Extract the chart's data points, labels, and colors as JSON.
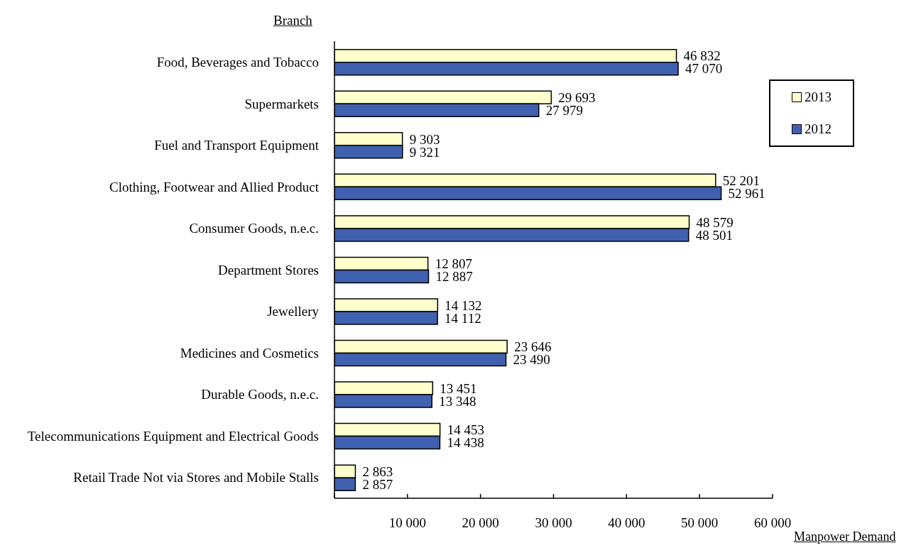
{
  "chart_data": {
    "type": "bar",
    "orientation": "horizontal",
    "ylabel": "Branch",
    "xlabel": "Manpower Demand",
    "categories": [
      "Food, Beverages and Tobacco",
      "Supermarkets",
      "Fuel and Transport Equipment",
      "Clothing, Footwear and Allied Product",
      "Consumer Goods, n.e.c.",
      "Department Stores",
      "Jewellery",
      "Medicines and Cosmetics",
      "Durable Goods, n.e.c.",
      "Telecommunications Equipment and Electrical Goods",
      "Retail Trade Not via Stores and Mobile Stalls"
    ],
    "series": [
      {
        "name": "2013",
        "color": "#ffffcc",
        "values": [
          46832,
          29693,
          9303,
          52201,
          48579,
          12807,
          14132,
          23646,
          13451,
          14453,
          2863
        ],
        "value_labels": [
          "46 832",
          "29 693",
          "9 303",
          "52 201",
          "48 579",
          "12 807",
          "14 132",
          "23 646",
          "13 451",
          "14 453",
          "2 863"
        ]
      },
      {
        "name": "2012",
        "color": "#4060b0",
        "values": [
          47070,
          27979,
          9321,
          52961,
          48501,
          12887,
          14112,
          23490,
          13348,
          14438,
          2857
        ],
        "value_labels": [
          "47 070",
          "27 979",
          "9 321",
          "52 961",
          "48 501",
          "12 887",
          "14 112",
          "23 490",
          "13 348",
          "14 438",
          "2 857"
        ]
      }
    ],
    "xlim": [
      0,
      60000
    ],
    "xticks": [
      {
        "value": 0,
        "label": null
      },
      {
        "value": 10000,
        "label": "10 000"
      },
      {
        "value": 20000,
        "label": "20 000"
      },
      {
        "value": 30000,
        "label": "30 000"
      },
      {
        "value": 40000,
        "label": "40 000"
      },
      {
        "value": 50000,
        "label": "50 000"
      },
      {
        "value": 60000,
        "label": "60 000"
      }
    ],
    "grid": false,
    "legend": "top right"
  }
}
